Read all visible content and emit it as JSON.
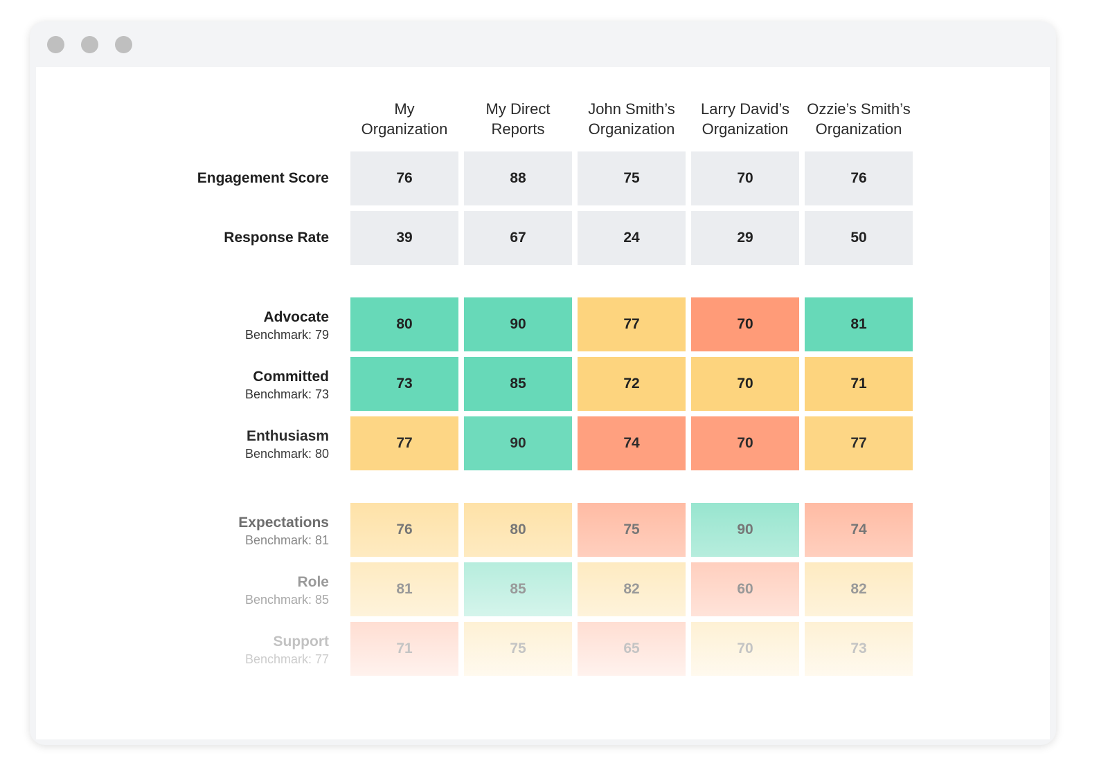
{
  "window": {
    "controls": [
      "close",
      "minimize",
      "maximize"
    ]
  },
  "columns": [
    [
      "My",
      "Organization"
    ],
    [
      "My Direct",
      "Reports"
    ],
    [
      "John Smith’s",
      "Organization"
    ],
    [
      "Larry David’s",
      "Organization"
    ],
    [
      "Ozzie’s Smith’s",
      "Organization"
    ]
  ],
  "rows": [
    {
      "label": "Engagement Score",
      "values": [
        "76",
        "88",
        "75",
        "70",
        "76"
      ]
    },
    {
      "label": "Response Rate",
      "values": [
        "39",
        "67",
        "24",
        "29",
        "50"
      ]
    },
    {
      "label": "Advocate",
      "benchmark": "Benchmark: 79",
      "values": [
        "80",
        "90",
        "77",
        "70",
        "81"
      ]
    },
    {
      "label": "Committed",
      "benchmark": "Benchmark: 73",
      "values": [
        "73",
        "85",
        "72",
        "70",
        "71"
      ]
    },
    {
      "label": "Enthusiasm",
      "benchmark": "Benchmark: 80",
      "values": [
        "77",
        "90",
        "74",
        "70",
        "77"
      ]
    },
    {
      "label": "Expectations",
      "benchmark": "Benchmark: 81",
      "values": [
        "76",
        "80",
        "75",
        "90",
        "74"
      ]
    },
    {
      "label": "Role",
      "benchmark": "Benchmark: 85",
      "values": [
        "81",
        "85",
        "82",
        "60",
        "82"
      ]
    },
    {
      "label": "Support",
      "benchmark": "Benchmark: 77",
      "values": [
        "71",
        "75",
        "65",
        "70",
        "73"
      ]
    }
  ],
  "colors": {
    "neutral": "#ebedf0",
    "green": "#67d9b8",
    "yellow": "#fdd47e",
    "orange": "#ff9b78"
  }
}
